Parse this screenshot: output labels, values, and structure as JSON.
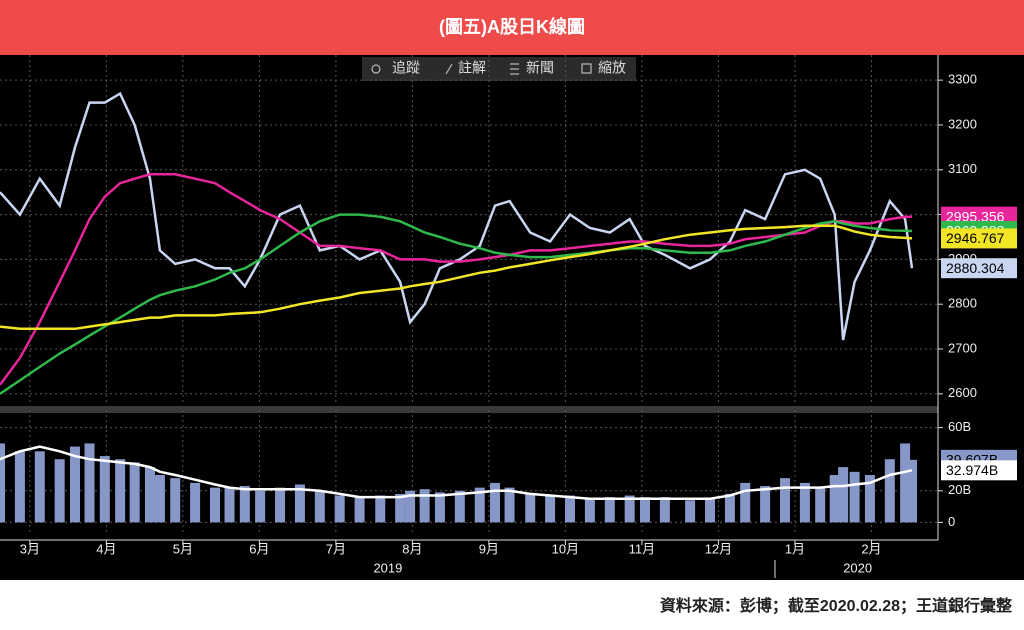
{
  "header": {
    "title": "(圖五)A股日K線圖"
  },
  "toolbar": [
    "追蹤",
    "註解",
    "新聞",
    "縮放"
  ],
  "chart_data": [
    {
      "type": "line",
      "x": [
        2.61,
        2.87,
        3.13,
        3.39,
        3.59,
        3.78,
        3.98,
        4.18,
        4.37,
        4.57,
        4.7,
        4.9,
        5.16,
        5.42,
        5.61,
        5.81,
        6.01,
        6.27,
        6.53,
        6.79,
        7.05,
        7.31,
        7.58,
        7.84,
        7.97,
        8.16,
        8.36,
        8.62,
        8.88,
        9.08,
        9.27,
        9.54,
        9.8,
        10.06,
        10.32,
        10.58,
        10.84,
        11.04,
        11.3,
        11.63,
        11.89,
        12.15,
        12.35,
        12.61,
        12.87,
        13.13,
        13.33,
        13.52,
        13.63,
        13.78,
        13.98,
        14.24,
        14.44,
        14.53
      ],
      "xlim": [
        2.61,
        14.53
      ],
      "xticks": [
        3,
        4,
        5,
        6,
        7,
        8,
        9,
        10,
        11,
        12,
        13,
        14
      ],
      "ylim": [
        2575,
        3345
      ],
      "yticks": [
        2600,
        2700,
        2800,
        2900,
        3000,
        3100,
        3200,
        3300
      ],
      "grid": true,
      "series": [
        {
          "color": "#c9d6f2",
          "values": [
            3050,
            3000,
            3080,
            3020,
            3150,
            3250,
            3250,
            3270,
            3200,
            3080,
            2920,
            2890,
            2900,
            2880,
            2880,
            2840,
            2900,
            3000,
            3020,
            2920,
            2930,
            2900,
            2920,
            2850,
            2760,
            2800,
            2880,
            2900,
            2930,
            3020,
            3030,
            2960,
            2940,
            3000,
            2970,
            2960,
            2990,
            2930,
            2910,
            2880,
            2900,
            2940,
            3010,
            2990,
            3090,
            3100,
            3080,
            3000,
            2720,
            2850,
            2920,
            3030,
            2990,
            2880.304
          ]
        },
        {
          "color": "#e8259a",
          "values": [
            2620,
            2680,
            2760,
            2850,
            2920,
            2990,
            3040,
            3070,
            3080,
            3090,
            3090,
            3090,
            3080,
            3070,
            3050,
            3030,
            3010,
            2990,
            2960,
            2930,
            2930,
            2925,
            2920,
            2900,
            2900,
            2900,
            2895,
            2895,
            2900,
            2905,
            2910,
            2920,
            2920,
            2925,
            2930,
            2935,
            2940,
            2940,
            2935,
            2930,
            2930,
            2935,
            2945,
            2950,
            2955,
            2960,
            2975,
            2985,
            2985,
            2980,
            2980,
            2990,
            2995,
            2995.356
          ]
        },
        {
          "color": "#2fb84c",
          "values": [
            2600,
            2630,
            2660,
            2690,
            2710,
            2730,
            2750,
            2770,
            2790,
            2810,
            2820,
            2830,
            2840,
            2855,
            2870,
            2880,
            2900,
            2930,
            2960,
            2985,
            3000,
            3000,
            2995,
            2985,
            2975,
            2960,
            2950,
            2935,
            2925,
            2915,
            2910,
            2905,
            2905,
            2910,
            2915,
            2920,
            2925,
            2925,
            2920,
            2915,
            2915,
            2920,
            2930,
            2940,
            2955,
            2970,
            2980,
            2985,
            2980,
            2975,
            2970,
            2965,
            2964,
            2963.288
          ]
        },
        {
          "color": "#f2e526",
          "values": [
            2750,
            2745,
            2745,
            2745,
            2745,
            2750,
            2755,
            2760,
            2765,
            2770,
            2770,
            2775,
            2775,
            2775,
            2778,
            2780,
            2782,
            2790,
            2800,
            2808,
            2815,
            2825,
            2830,
            2835,
            2840,
            2845,
            2850,
            2860,
            2870,
            2875,
            2882,
            2890,
            2898,
            2905,
            2912,
            2920,
            2928,
            2935,
            2945,
            2955,
            2960,
            2965,
            2968,
            2970,
            2972,
            2975,
            2975,
            2975,
            2970,
            2962,
            2955,
            2950,
            2948,
            2946.767
          ]
        }
      ]
    },
    {
      "type": "bar",
      "x": [
        2.61,
        2.87,
        3.13,
        3.39,
        3.59,
        3.78,
        3.98,
        4.18,
        4.37,
        4.57,
        4.7,
        4.9,
        5.16,
        5.42,
        5.61,
        5.81,
        6.01,
        6.27,
        6.53,
        6.79,
        7.05,
        7.31,
        7.58,
        7.84,
        7.97,
        8.16,
        8.36,
        8.62,
        8.88,
        9.08,
        9.27,
        9.54,
        9.8,
        10.06,
        10.32,
        10.58,
        10.84,
        11.04,
        11.3,
        11.63,
        11.89,
        12.15,
        12.35,
        12.61,
        12.87,
        13.13,
        13.33,
        13.52,
        13.63,
        13.78,
        13.98,
        14.24,
        14.44,
        14.53
      ],
      "xlim": [
        2.61,
        14.53
      ],
      "xticks": [
        {
          "value": 3,
          "label": "3月"
        },
        {
          "value": 4,
          "label": "4月"
        },
        {
          "value": 5,
          "label": "5月"
        },
        {
          "value": 6,
          "label": "6月"
        },
        {
          "value": 7,
          "label": "7月"
        },
        {
          "value": 8,
          "label": "8月"
        },
        {
          "value": 9,
          "label": "9月"
        },
        {
          "value": 10,
          "label": "10月"
        },
        {
          "value": 11,
          "label": "11月"
        },
        {
          "value": 12,
          "label": "12月"
        },
        {
          "value": 13,
          "label": "1月"
        },
        {
          "value": 14,
          "label": "2月"
        }
      ],
      "year_labels": [
        {
          "value": 7.68,
          "label": "2019"
        },
        {
          "value": 13.82,
          "label": "2020"
        }
      ],
      "ylim": [
        -8,
        68
      ],
      "yticks": [
        0,
        {
          "value": 20,
          "label": "20B"
        },
        {
          "value": 60,
          "label": "60B"
        }
      ],
      "grid": true,
      "series": [
        {
          "type": "bar",
          "color": "#8797c8",
          "values": [
            50,
            45,
            45,
            40,
            48,
            50,
            42,
            40,
            38,
            35,
            30,
            28,
            25,
            22,
            22,
            23,
            20,
            22,
            24,
            20,
            17,
            16,
            17,
            18,
            20,
            21,
            19,
            20,
            22,
            25,
            22,
            18,
            17,
            17,
            15,
            16,
            17,
            16,
            16,
            14,
            15,
            18,
            25,
            23,
            28,
            25,
            22,
            30,
            35,
            32,
            30,
            40,
            50,
            39.607
          ],
          "value_labels": [
            null,
            null,
            null,
            null,
            null,
            null,
            null,
            null,
            null,
            null,
            null,
            null,
            null,
            null,
            null,
            null,
            null,
            null,
            null,
            null,
            null,
            null,
            null,
            null,
            null,
            null,
            null,
            null,
            null,
            null,
            null,
            null,
            null,
            null,
            null,
            null,
            null,
            null,
            null,
            null,
            null,
            null,
            null,
            null,
            null,
            null,
            null,
            null,
            null,
            null,
            null,
            null,
            null,
            "39.607B"
          ]
        },
        {
          "type": "line",
          "color": "#ffffff",
          "values": [
            40,
            45,
            48,
            45,
            42,
            40,
            39,
            38,
            37,
            35,
            32,
            30,
            27,
            24,
            22,
            21,
            21,
            21,
            21,
            20,
            18,
            16,
            16,
            16,
            17,
            17,
            17,
            18,
            19,
            20,
            20,
            18,
            17,
            16,
            15,
            15,
            15,
            15,
            15,
            15,
            15,
            17,
            20,
            21,
            22,
            22,
            22,
            23,
            23,
            24,
            25,
            30,
            32,
            32.974
          ],
          "value_labels": [
            null,
            null,
            null,
            null,
            null,
            null,
            null,
            null,
            null,
            null,
            null,
            null,
            null,
            null,
            null,
            null,
            null,
            null,
            null,
            null,
            null,
            null,
            null,
            null,
            null,
            null,
            null,
            null,
            null,
            null,
            null,
            null,
            null,
            null,
            null,
            null,
            null,
            null,
            null,
            null,
            null,
            null,
            null,
            null,
            null,
            null,
            null,
            null,
            null,
            null,
            null,
            null,
            null,
            "32.974B"
          ]
        }
      ]
    }
  ],
  "footer": {
    "source": "資料來源：彭博；截至2020.02.28；王道銀行彙整"
  }
}
